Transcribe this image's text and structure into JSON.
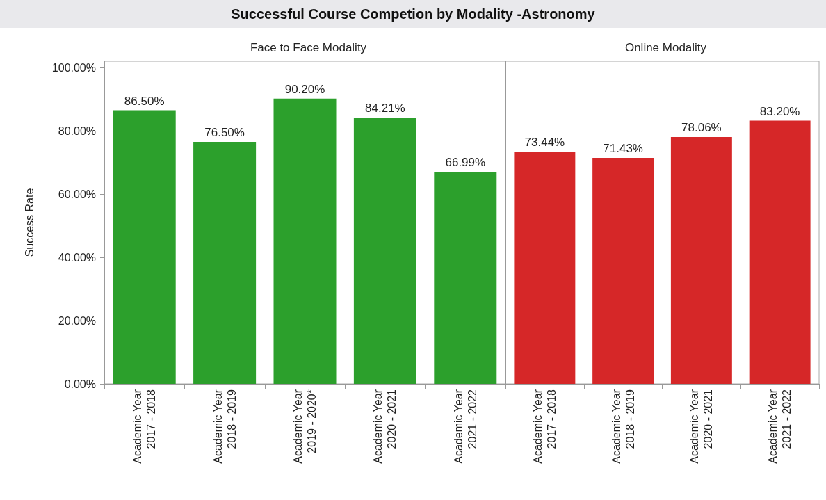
{
  "chart_data": [
    {
      "type": "bar",
      "title": "Successful Course Competion by Modality -Astronomy",
      "subtitle": "Face to Face Modality",
      "ylabel": "Success Rate",
      "categories": [
        "Academic Year\n2017 - 2018",
        "Academic Year\n2018 - 2019",
        "Academic Year\n2019 - 2020*",
        "Academic Year\n2020 - 2021",
        "Academic Year\n2021 - 2022"
      ],
      "values": [
        86.5,
        76.5,
        90.2,
        84.21,
        66.99
      ],
      "color": "#2ca02c",
      "value_labels": [
        "86.50%",
        "76.50%",
        "90.20%",
        "84.21%",
        "66.99%"
      ],
      "ylim": [
        0,
        102
      ],
      "yticks": [
        {
          "value": 0,
          "label": "0.00%"
        },
        {
          "value": 20,
          "label": "20.00%"
        },
        {
          "value": 40,
          "label": "40.00%"
        },
        {
          "value": 60,
          "label": "60.00%"
        },
        {
          "value": 80,
          "label": "80.00%"
        },
        {
          "value": 100,
          "label": "100.00%"
        }
      ],
      "grid": false
    },
    {
      "type": "bar",
      "subtitle": "Online Modality",
      "categories": [
        "Academic Year\n2017 - 2018",
        "Academic Year\n2018 - 2019",
        "Academic Year\n2020 - 2021",
        "Academic Year\n2021 - 2022"
      ],
      "values": [
        73.44,
        71.43,
        78.06,
        83.2
      ],
      "color": "#d62728",
      "value_labels": [
        "73.44%",
        "71.43%",
        "78.06%",
        "83.20%"
      ],
      "ylim": [
        0,
        102
      ],
      "tick_labels": "x",
      "grid": false
    }
  ]
}
